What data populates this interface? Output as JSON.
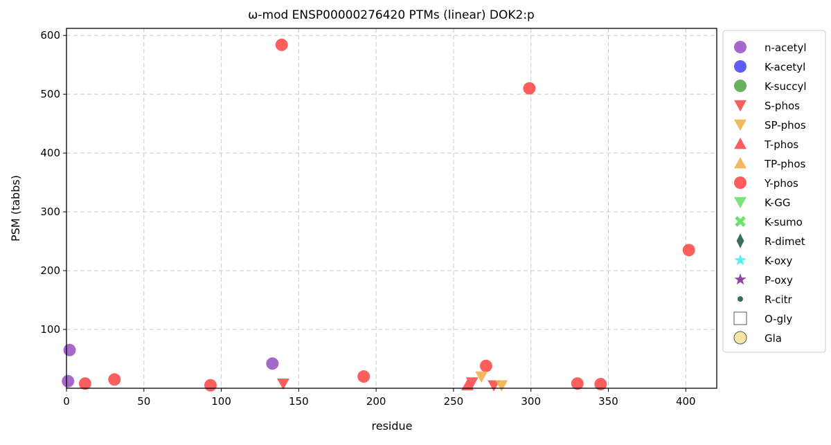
{
  "chart_data": {
    "type": "scatter",
    "title": "ω-mod ENSP00000276420 PTMs (linear) DOK2:p",
    "xlabel": "residue",
    "ylabel": "PSM (tabbs)",
    "xlim": [
      0,
      420
    ],
    "ylim": [
      0,
      612
    ],
    "xticks": [
      0,
      50,
      100,
      150,
      200,
      250,
      300,
      350,
      400
    ],
    "yticks": [
      100,
      200,
      300,
      400,
      500,
      600
    ],
    "grid": true,
    "legend_position": "outside-right",
    "legend": [
      {
        "name": "n-acetyl",
        "marker": "circle",
        "color": "#9b59c6"
      },
      {
        "name": "K-acetyl",
        "marker": "circle",
        "color": "#4b4bf5"
      },
      {
        "name": "K-succyl",
        "marker": "circle",
        "color": "#5aa84a"
      },
      {
        "name": "S-phos",
        "marker": "tri-down",
        "color": "#ff4d4d"
      },
      {
        "name": "SP-phos",
        "marker": "tri-down",
        "color": "#f0b04a"
      },
      {
        "name": "T-phos",
        "marker": "tri-up",
        "color": "#ff4d4d"
      },
      {
        "name": "TP-phos",
        "marker": "tri-up",
        "color": "#f0b04a"
      },
      {
        "name": "Y-phos",
        "marker": "circle",
        "color": "#ff4d4d"
      },
      {
        "name": "K-GG",
        "marker": "tri-down",
        "color": "#6ee06e"
      },
      {
        "name": "K-sumo",
        "marker": "x",
        "color": "#6ee06e"
      },
      {
        "name": "R-dimet",
        "marker": "diamond",
        "color": "#3d6e5a"
      },
      {
        "name": "K-oxy",
        "marker": "star",
        "color": "#4ef0f0"
      },
      {
        "name": "P-oxy",
        "marker": "star",
        "color": "#8e44ad"
      },
      {
        "name": "R-citr",
        "marker": "smalldot",
        "color": "#3d6e5a"
      },
      {
        "name": "O-gly",
        "marker": "square",
        "color": "#ffffff"
      },
      {
        "name": "Gla",
        "marker": "circle-outline",
        "color": "#f5e6a8"
      }
    ],
    "series": [
      {
        "name": "n-acetyl",
        "points": [
          [
            2,
            65
          ],
          [
            1,
            12
          ],
          [
            133,
            42
          ]
        ]
      },
      {
        "name": "Y-phos",
        "points": [
          [
            12,
            8
          ],
          [
            31,
            15
          ],
          [
            93,
            5
          ],
          [
            139,
            584
          ],
          [
            192,
            20
          ],
          [
            271,
            38
          ],
          [
            299,
            510
          ],
          [
            330,
            8
          ],
          [
            345,
            7
          ],
          [
            402,
            235
          ]
        ]
      },
      {
        "name": "T-phos",
        "points": [
          [
            259,
            5
          ]
        ]
      },
      {
        "name": "S-phos",
        "points": [
          [
            140,
            8
          ],
          [
            262,
            10
          ],
          [
            276,
            5
          ]
        ]
      },
      {
        "name": "SP-phos",
        "points": [
          [
            268,
            20
          ],
          [
            281,
            5
          ]
        ]
      }
    ]
  }
}
